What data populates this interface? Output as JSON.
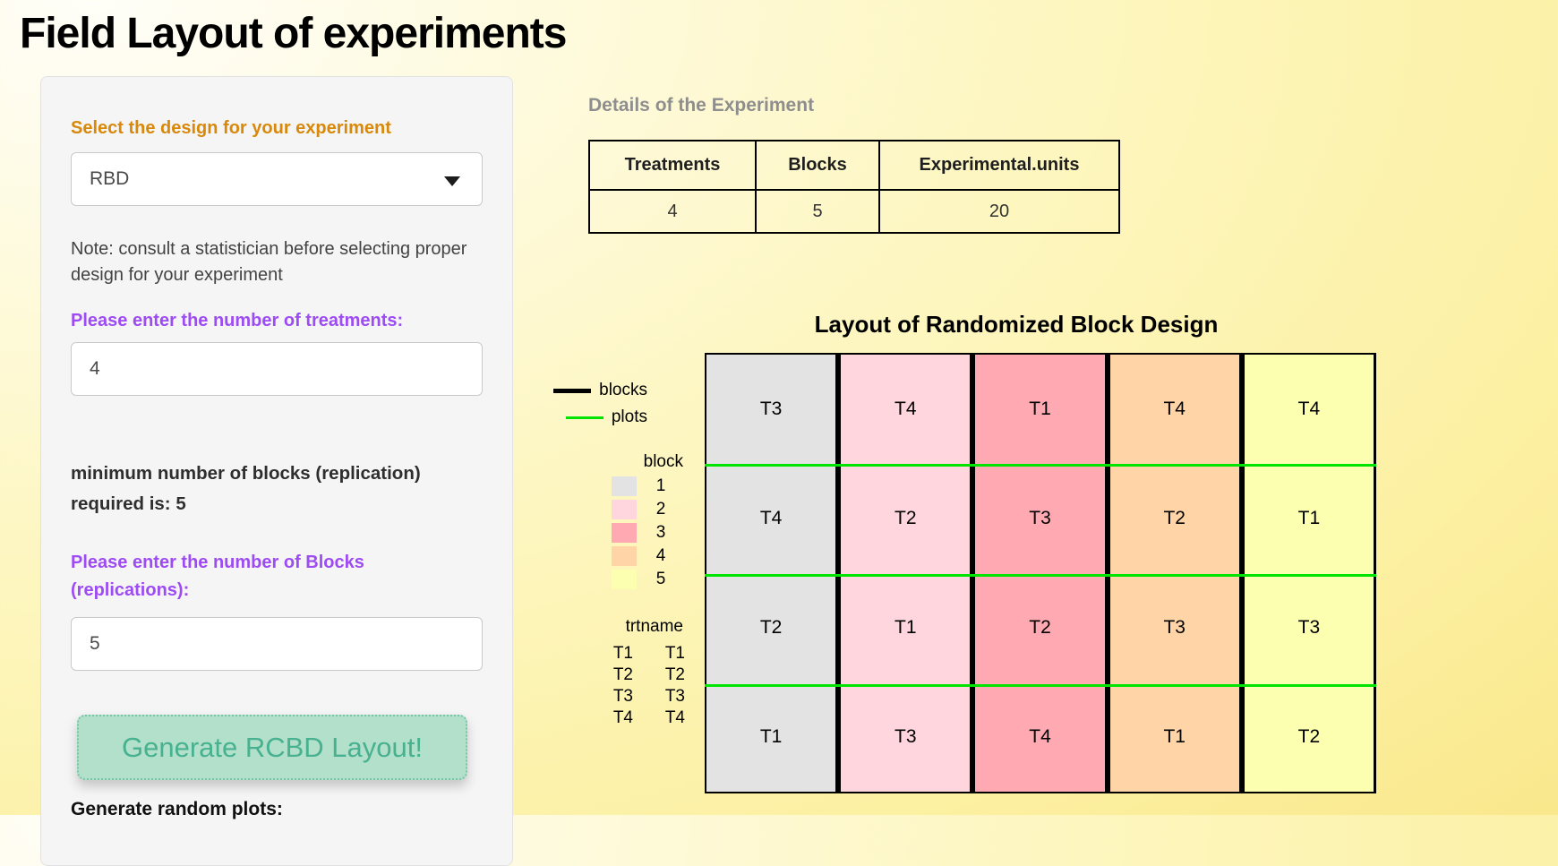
{
  "page": {
    "title": "Field Layout of experiments"
  },
  "sidebar": {
    "design_label": "Select the design for your experiment",
    "design_value": "RBD",
    "note": "Note: consult a statistician before selecting proper design for your experiment",
    "treatments_label": "Please enter the number of treatments:",
    "treatments_value": "4",
    "min_blocks_text": "minimum number of blocks (replication) required is: 5",
    "blocks_label": "Please enter the number of Blocks (replications):",
    "blocks_value": "5",
    "generate_button": "Generate RCBD Layout!",
    "random_plots_label": "Generate random plots:"
  },
  "details": {
    "heading": "Details of the Experiment",
    "columns": [
      "Treatments",
      "Blocks",
      "Experimental.units"
    ],
    "values": [
      "4",
      "5",
      "20"
    ]
  },
  "plot": {
    "title": "Layout of Randomized Block Design",
    "legend": {
      "blocks_label": "blocks",
      "plots_label": "plots",
      "block_header": "block",
      "blocks": [
        {
          "id": "1",
          "color": "#e3e3e3"
        },
        {
          "id": "2",
          "color": "#ffd6de"
        },
        {
          "id": "3",
          "color": "#ffa9b2"
        },
        {
          "id": "4",
          "color": "#ffd4a6"
        },
        {
          "id": "5",
          "color": "#fdffb0"
        }
      ],
      "trtname_header": "trtname",
      "treatments": [
        {
          "level": "T1",
          "name": "T1"
        },
        {
          "level": "T2",
          "name": "T2"
        },
        {
          "level": "T3",
          "name": "T3"
        },
        {
          "level": "T4",
          "name": "T4"
        }
      ],
      "blocks_line_color": "#000000",
      "plots_line_color": "#00e400"
    },
    "grid": {
      "block_colors": [
        "#e3e3e3",
        "#ffd6de",
        "#ffa9b2",
        "#ffd4a6",
        "#fdffb0"
      ],
      "rows": [
        [
          "T3",
          "T4",
          "T1",
          "T4",
          "T4"
        ],
        [
          "T4",
          "T2",
          "T3",
          "T2",
          "T1"
        ],
        [
          "T2",
          "T1",
          "T2",
          "T3",
          "T3"
        ],
        [
          "T1",
          "T3",
          "T4",
          "T1",
          "T2"
        ]
      ]
    }
  }
}
